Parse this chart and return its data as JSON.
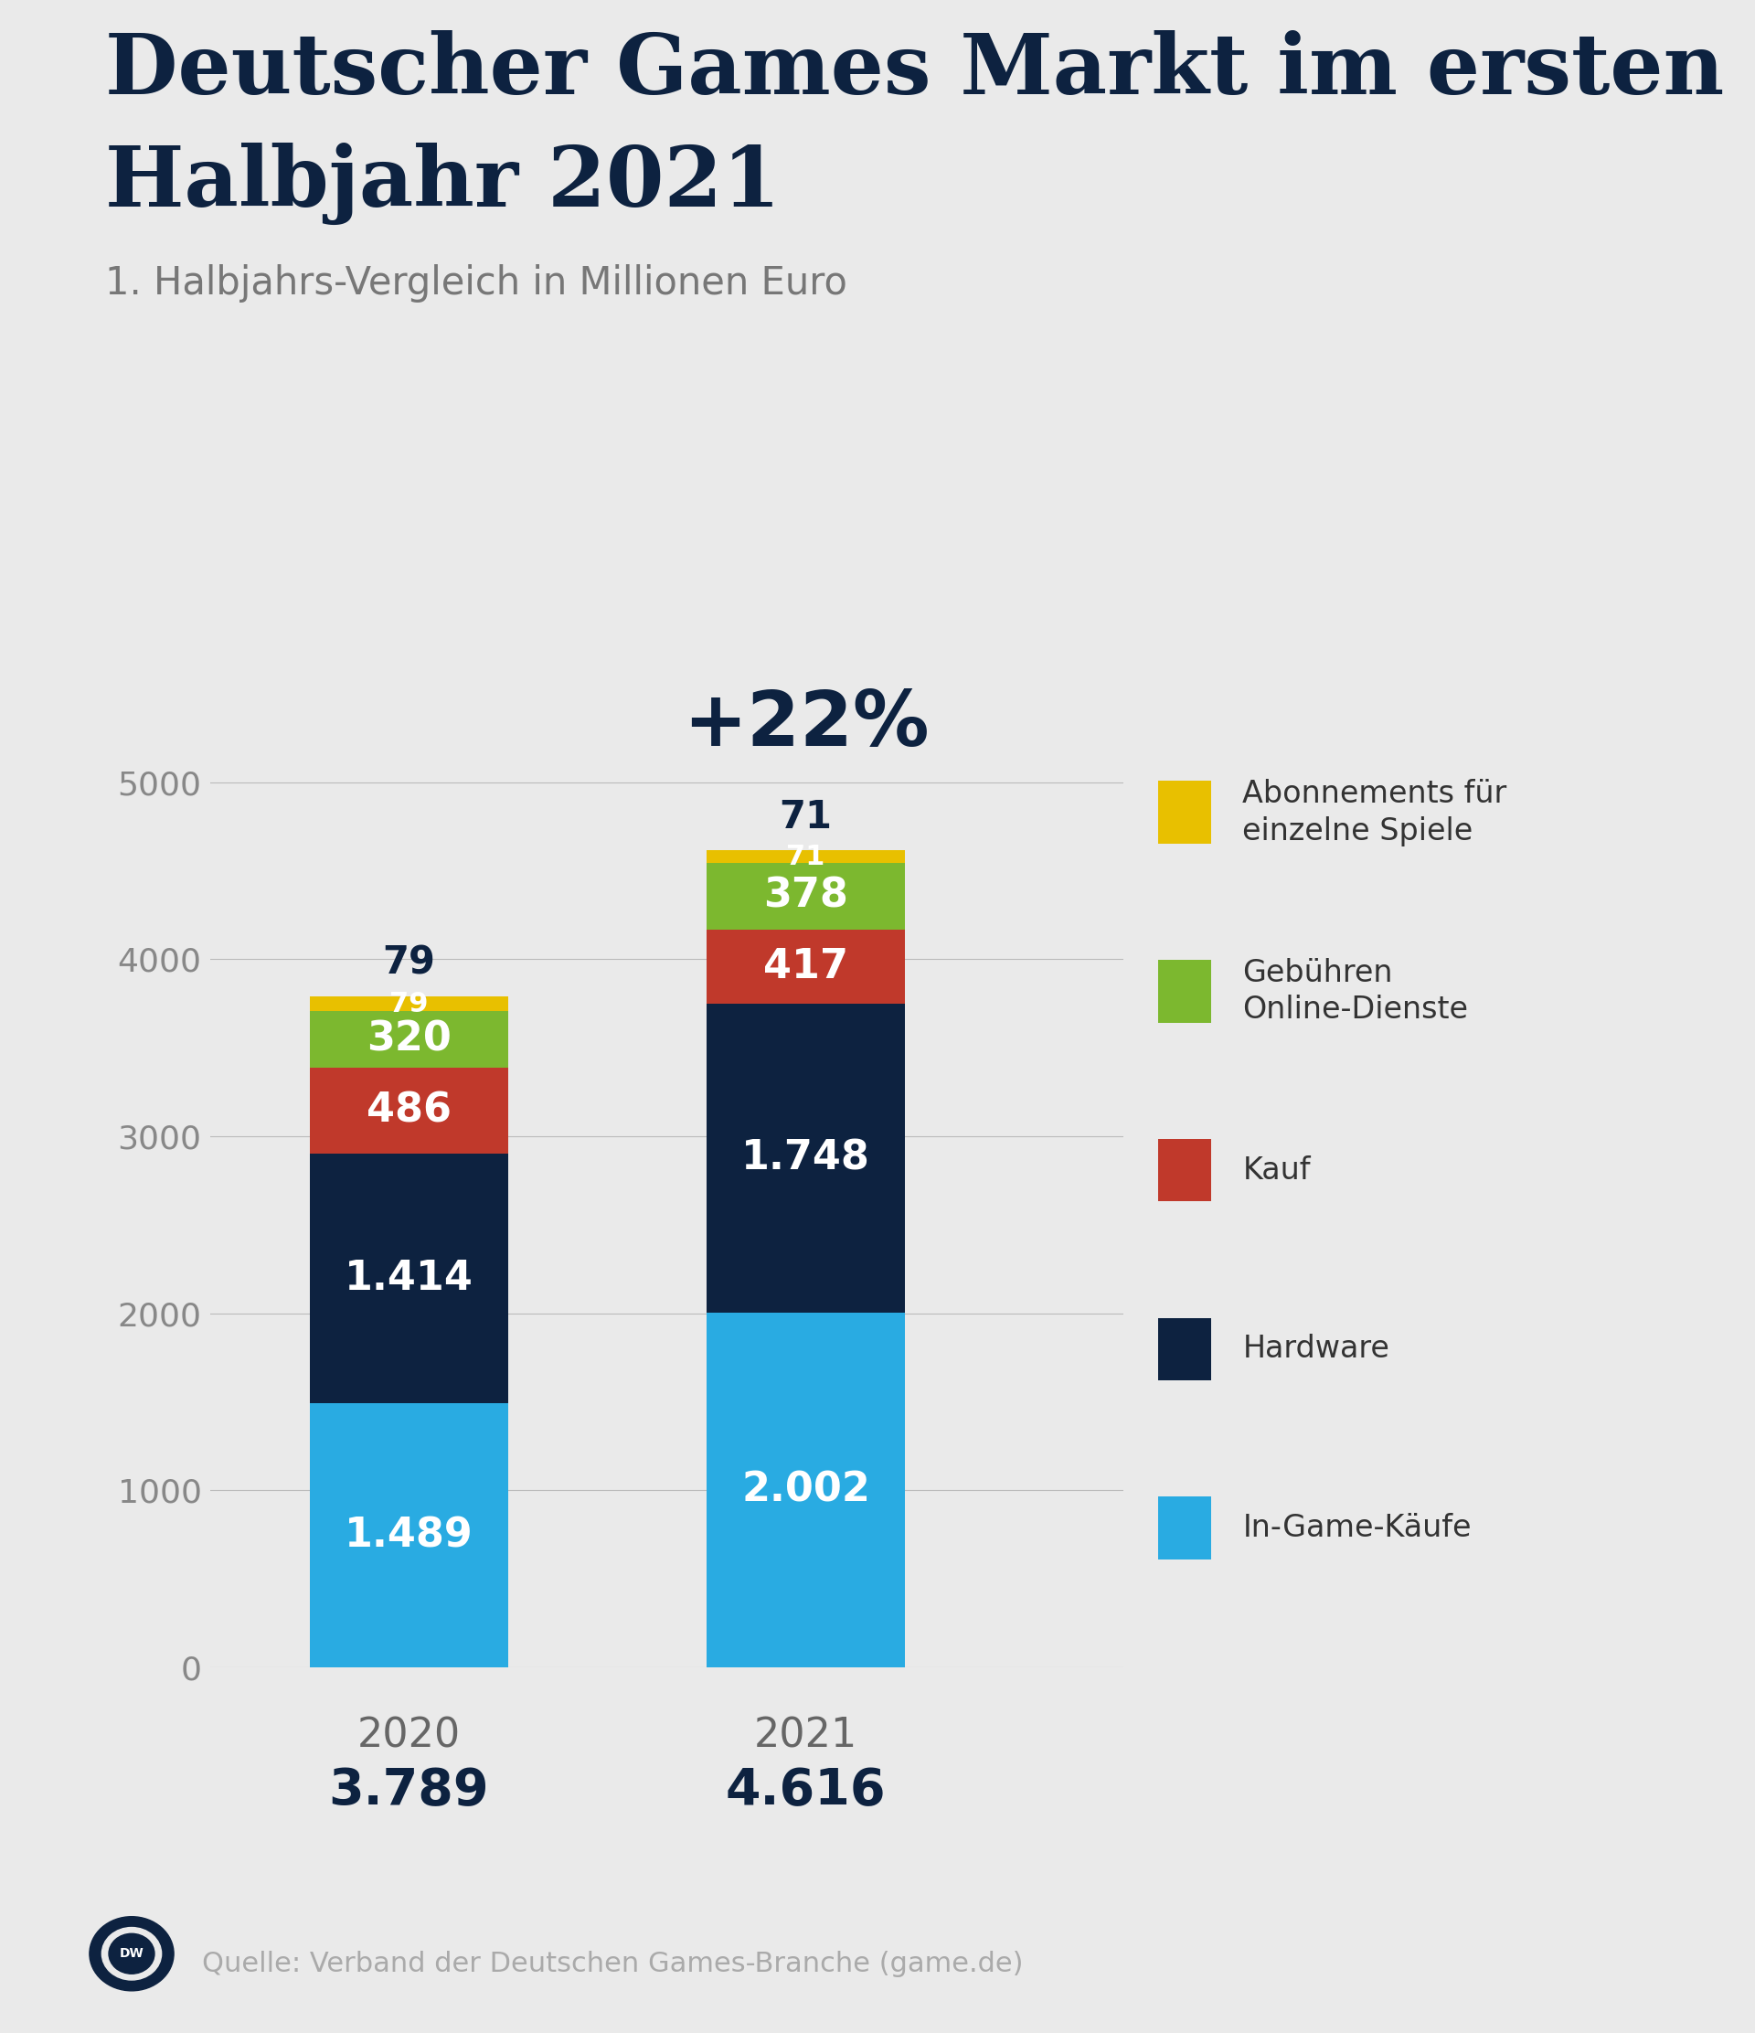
{
  "title_line1": "Deutscher Games Markt im ersten",
  "title_line2": "Halbjahr 2021",
  "subtitle": "1. Halbjahrs-Vergleich in Millionen Euro",
  "years": [
    "2020",
    "2021"
  ],
  "totals": [
    "3.789",
    "4.616"
  ],
  "percent_label": "+22%",
  "values_2020": [
    1489,
    1414,
    486,
    320,
    79
  ],
  "values_2021": [
    2002,
    1748,
    417,
    378,
    71
  ],
  "bar_labels_2020": [
    "1.489",
    "1.414",
    "486",
    "320",
    "79"
  ],
  "bar_labels_2021": [
    "2.002",
    "1.748",
    "417",
    "378",
    "71"
  ],
  "top_labels_2020": "79",
  "top_labels_2021": "71",
  "colors": [
    "#29ABE2",
    "#0D2240",
    "#C0392B",
    "#7CB82F",
    "#E8C000"
  ],
  "background_color": "#EAEAEA",
  "title_color": "#0D2240",
  "subtitle_color": "#777777",
  "year_label_color": "#666666",
  "total_color": "#0D2240",
  "percent_color": "#0D2240",
  "grid_color": "#BBBBBB",
  "tick_color": "#888888",
  "ylim": [
    0,
    5400
  ],
  "yticks": [
    0,
    1000,
    2000,
    3000,
    4000,
    5000
  ],
  "legend_items": [
    {
      "label": "Abonnements für\neinzelne Spiele",
      "color": "#E8C000"
    },
    {
      "label": "Gebühren\nOnline-Dienste",
      "color": "#7CB82F"
    },
    {
      "label": "Kauf",
      "color": "#C0392B"
    },
    {
      "label": "Hardware",
      "color": "#0D2240"
    },
    {
      "label": "In-Game-Käufe",
      "color": "#29ABE2"
    }
  ],
  "source_text": "Quelle: Verband der Deutschen Games-Branche (game.de)",
  "dw_color": "#0D2240"
}
